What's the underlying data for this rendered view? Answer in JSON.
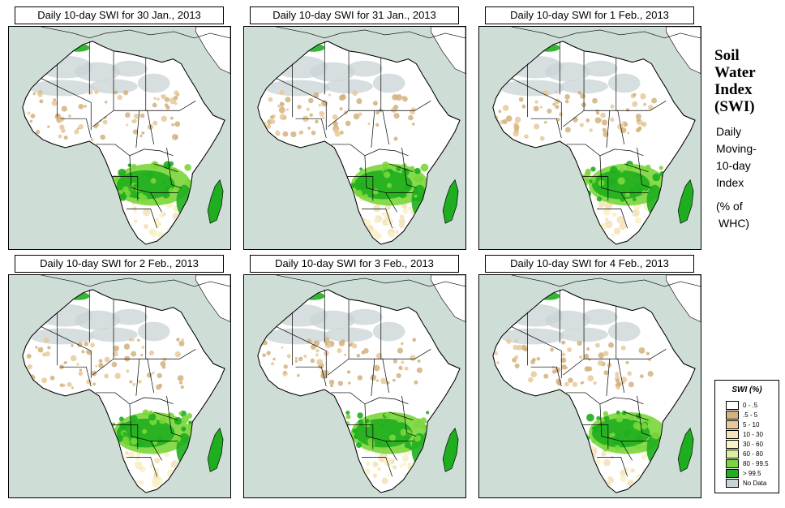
{
  "panels": [
    {
      "title": "Daily 10-day SWI for  30 Jan., 2013",
      "variant": 0
    },
    {
      "title": "Daily 10-day SWI for  31 Jan., 2013",
      "variant": 1
    },
    {
      "title": "Daily 10-day SWI for  1 Feb., 2013",
      "variant": 2
    },
    {
      "title": "Daily 10-day SWI for  2 Feb., 2013",
      "variant": 3
    },
    {
      "title": "Daily 10-day SWI for  3 Feb., 2013",
      "variant": 4
    },
    {
      "title": "Daily 10-day SWI for  4 Feb., 2013",
      "variant": 5
    }
  ],
  "side": {
    "heading": [
      "Soil",
      "Water",
      "Index",
      "(SWI)"
    ],
    "desc": [
      "Daily",
      "Moving-",
      "10-day",
      "Index"
    ],
    "unit": [
      "(% of",
      "WHC)"
    ]
  },
  "legend": {
    "title": "SWI (%)",
    "items": [
      {
        "label": "0 - .5",
        "color": "#ffffff"
      },
      {
        "label": ".5 - 5",
        "color": "#d2b27d"
      },
      {
        "label": "5 - 10",
        "color": "#e8c99a"
      },
      {
        "label": "10 - 30",
        "color": "#f4e2bd"
      },
      {
        "label": "30 - 60",
        "color": "#f8f2c8"
      },
      {
        "label": "60 - 80",
        "color": "#d8f0a0"
      },
      {
        "label": "80 - 99.5",
        "color": "#7ad63a"
      },
      {
        "label": "> 99.5",
        "color": "#1fae1f"
      },
      {
        "label": "No Data",
        "color": "#c9d3d6"
      }
    ]
  },
  "colors": {
    "ocean": "#cfddd7",
    "land": "#ffffff",
    "dry": "#d2b27d",
    "wet": "#1fae1f",
    "moist": "#7ad63a",
    "nodata": "#c9d3d6",
    "light": "#f8f2c8"
  }
}
